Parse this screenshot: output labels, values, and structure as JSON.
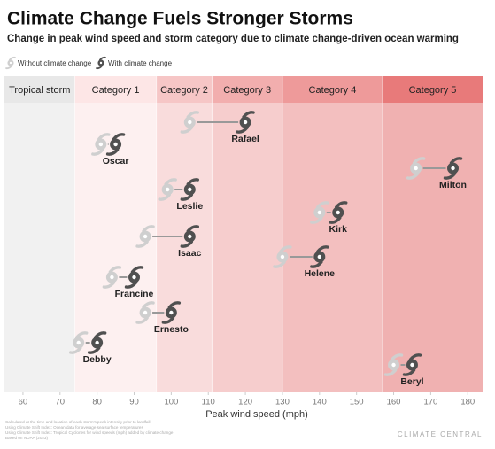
{
  "chart_data": {
    "type": "dumbbell",
    "title": "Climate Change Fuels Stronger Storms",
    "subtitle": "Change in peak wind speed and storm category due to climate change-driven ocean warming",
    "xlabel": "Peak wind speed (mph)",
    "xlim": [
      55,
      184
    ],
    "xticks": [
      60,
      70,
      80,
      90,
      100,
      110,
      120,
      130,
      140,
      150,
      160,
      170,
      180
    ],
    "bands": [
      "Tropical storm",
      "Category 1",
      "Category 2",
      "Category 3",
      "Category 4",
      "Category 5"
    ],
    "band_edges": [
      74,
      96,
      111,
      130,
      157
    ],
    "band_colors": [
      "#f1f1f1",
      "#fdf0f0",
      "#f9dcdc",
      "#f6cdcd",
      "#f3bfbf",
      "#f0b1b1"
    ],
    "band_header_colors": [
      "#e8e8e8",
      "#fde6e6",
      "#f6c6c6",
      "#f2aeae",
      "#ee9a9a",
      "#e87a7a"
    ],
    "storms": [
      "Rafael",
      "Oscar",
      "Milton",
      "Leslie",
      "Kirk",
      "Isaac",
      "Helene",
      "Francine",
      "Ernesto",
      "Debby",
      "Beryl"
    ],
    "series": [
      {
        "name": "Without climate change",
        "color": "#cfcfcf",
        "values": [
          105,
          81,
          166,
          99,
          140,
          93,
          130,
          84,
          93,
          75,
          160
        ]
      },
      {
        "name": "With climate change",
        "color": "#505050",
        "values": [
          120,
          85,
          176,
          105,
          145,
          105,
          140,
          90,
          100,
          80,
          165
        ]
      }
    ],
    "notes": [
      "Calculated at the time and location of each storm's peak intensity prior to landfall",
      "Using Climate Shift Index: Ocean data for average sea surface temperatures",
      "Using Climate Shift Index: Tropical Cyclones for wind speeds (mph) added by climate change",
      "Based on NOAA (2023)"
    ],
    "source": "CLIMATE CENTRAL"
  }
}
